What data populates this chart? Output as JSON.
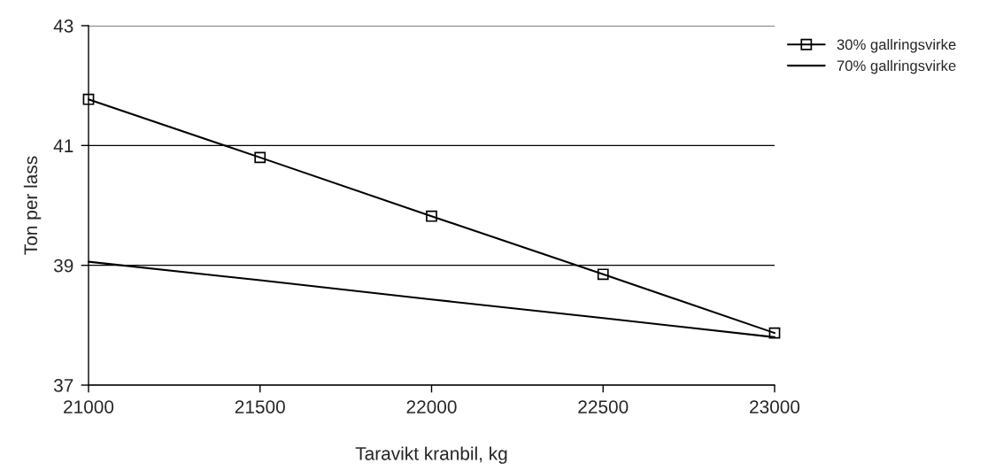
{
  "chart_data": {
    "type": "line",
    "xlabel": "Taravikt kranbil, kg",
    "ylabel": "Ton per lass",
    "x": [
      21000,
      21500,
      22000,
      22500,
      23000
    ],
    "series": [
      {
        "name": "30% gallringsvirke",
        "color": "#000000",
        "marker": "square",
        "values": [
          41.77,
          40.8,
          39.82,
          38.85,
          37.87
        ]
      },
      {
        "name": "70% gallringsvirke",
        "color": "#000000",
        "marker": "none",
        "values": [
          39.06,
          38.75,
          38.43,
          38.12,
          37.8
        ]
      }
    ],
    "xlim": [
      21000,
      23000
    ],
    "xticks": [
      21000,
      21500,
      22000,
      22500,
      23000
    ],
    "ylim": [
      37,
      43
    ],
    "yticks": [
      37,
      39,
      41,
      43
    ],
    "grid": "y",
    "legend": "top right",
    "line_style": "solid"
  }
}
